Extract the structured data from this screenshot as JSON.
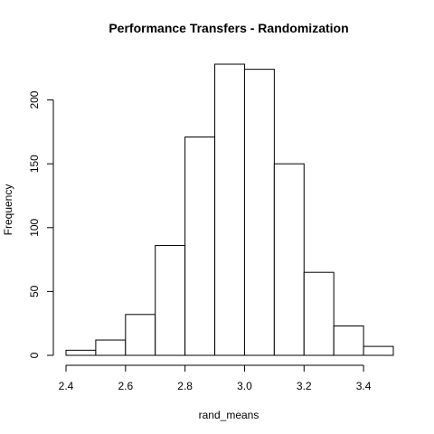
{
  "chart_data": {
    "type": "bar",
    "title": "Performance Transfers - Randomization",
    "xlabel": "rand_means",
    "ylabel": "Frequency",
    "bins": [
      {
        "start": 2.4,
        "end": 2.5,
        "count": 4
      },
      {
        "start": 2.5,
        "end": 2.6,
        "count": 12
      },
      {
        "start": 2.6,
        "end": 2.7,
        "count": 32
      },
      {
        "start": 2.7,
        "end": 2.8,
        "count": 86
      },
      {
        "start": 2.8,
        "end": 2.9,
        "count": 171
      },
      {
        "start": 2.9,
        "end": 3.0,
        "count": 228
      },
      {
        "start": 3.0,
        "end": 3.1,
        "count": 224
      },
      {
        "start": 3.1,
        "end": 3.2,
        "count": 150
      },
      {
        "start": 3.2,
        "end": 3.3,
        "count": 65
      },
      {
        "start": 3.3,
        "end": 3.4,
        "count": 23
      },
      {
        "start": 3.4,
        "end": 3.5,
        "count": 7
      }
    ],
    "xlim": [
      2.4,
      3.5
    ],
    "ylim": [
      0,
      228
    ],
    "x_ticks": [
      2.4,
      2.6,
      2.8,
      3.0,
      3.2,
      3.4
    ],
    "x_tick_labels": [
      "2.4",
      "2.6",
      "2.8",
      "3.0",
      "3.2",
      "3.4"
    ],
    "y_ticks": [
      0,
      50,
      100,
      150,
      200
    ],
    "y_tick_labels": [
      "0",
      "50",
      "100",
      "150",
      "200"
    ],
    "grid": false,
    "colors": {
      "bar_fill": "#ffffff",
      "bar_stroke": "#000000"
    }
  }
}
